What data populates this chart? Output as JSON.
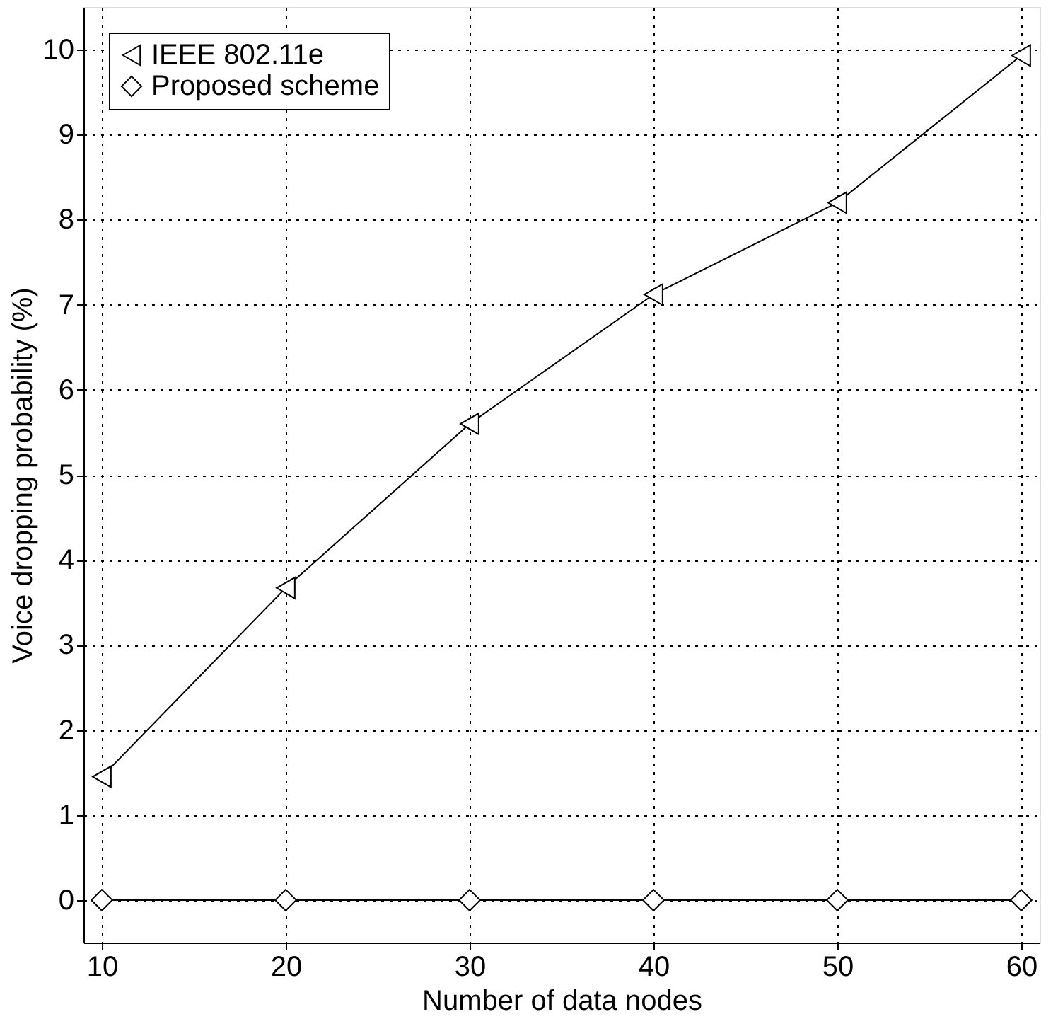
{
  "chart_data": {
    "type": "line",
    "xlabel": "Number of data nodes",
    "ylabel": "Voice dropping probability (%)",
    "x": [
      10,
      20,
      30,
      40,
      50,
      60
    ],
    "series": [
      {
        "name": "IEEE 802.11e",
        "color": "#000000",
        "marker": "triangle",
        "values": [
          1.45,
          3.67,
          5.6,
          7.12,
          8.2,
          9.93
        ]
      },
      {
        "name": "Proposed scheme",
        "color": "#000000",
        "marker": "diamond",
        "values": [
          0,
          0,
          0,
          0,
          0,
          0
        ]
      }
    ],
    "xlim": [
      9,
      61
    ],
    "xticks": [
      10,
      20,
      30,
      40,
      50,
      60
    ],
    "ylim": [
      -0.5,
      10.5
    ],
    "yticks": [
      0,
      1,
      2,
      3,
      4,
      5,
      6,
      7,
      8,
      9,
      10
    ],
    "grid": true,
    "legend": "top left",
    "line_style": "solid"
  }
}
